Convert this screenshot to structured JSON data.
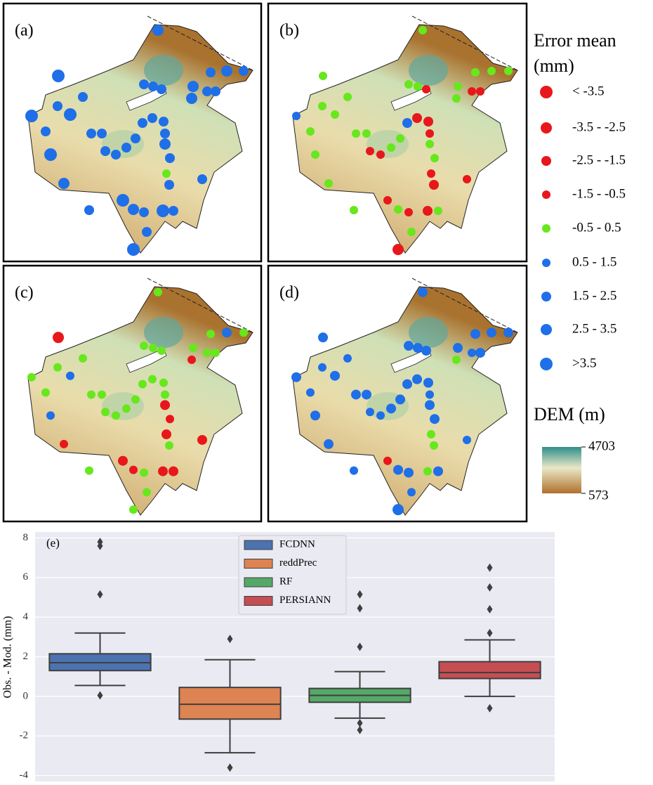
{
  "maps": {
    "panels": [
      {
        "label": "(a)"
      },
      {
        "label": "(b)"
      },
      {
        "label": "(c)"
      },
      {
        "label": "(d)"
      }
    ]
  },
  "legend": {
    "title": "Error mean (mm)",
    "classes": [
      {
        "label": "< -3.5",
        "color": "#e8171b"
      },
      {
        "label": "-3.5 - -2.5",
        "color": "#e8171b"
      },
      {
        "label": "-2.5 - -1.5",
        "color": "#e8171b"
      },
      {
        "label": "-1.5 - -0.5",
        "color": "#e8171b"
      },
      {
        "label": "-0.5 - 0.5",
        "color": "#66e81c"
      },
      {
        "label": "0.5 - 1.5",
        "color": "#1e6fe8"
      },
      {
        "label": "1.5 - 2.5",
        "color": "#1e6fe8"
      },
      {
        "label": "2.5 - 3.5",
        "color": "#1e6fe8"
      },
      {
        "label": ">3.5",
        "color": "#1e6fe8"
      }
    ]
  },
  "dem": {
    "title": "DEM (m)",
    "ticks": [
      4703,
      573
    ]
  },
  "chart_data": {
    "type": "box",
    "annotation": "(e)",
    "y_label": "Obs. - Mod. (mm)",
    "ylim": [
      -4.3,
      8.3
    ],
    "yticks": [
      -4,
      -2,
      0,
      2,
      4,
      6,
      8
    ],
    "grid": true,
    "series": [
      {
        "name": "FCDNN",
        "color": "#4c72b0",
        "whislo": 0.55,
        "q1": 1.3,
        "med": 1.7,
        "q3": 2.15,
        "whishi": 3.2,
        "fliers": [
          0.05,
          5.15,
          7.6,
          7.8
        ]
      },
      {
        "name": "reddPrec",
        "color": "#dd8452",
        "whislo": -2.85,
        "q1": -1.15,
        "med": -0.4,
        "q3": 0.45,
        "whishi": 1.85,
        "fliers": [
          -3.6,
          2.9
        ]
      },
      {
        "name": "RF",
        "color": "#55a868",
        "whislo": -1.1,
        "q1": -0.3,
        "med": 0.05,
        "q3": 0.4,
        "whishi": 1.25,
        "fliers": [
          -1.7,
          -1.35,
          2.5,
          4.45,
          5.15
        ]
      },
      {
        "name": "PERSIANN",
        "color": "#c44e52",
        "whislo": 0,
        "q1": 0.9,
        "med": 1.2,
        "q3": 1.75,
        "whishi": 2.85,
        "fliers": [
          -0.6,
          3.2,
          4.4,
          5.5,
          6.5
        ]
      }
    ]
  }
}
